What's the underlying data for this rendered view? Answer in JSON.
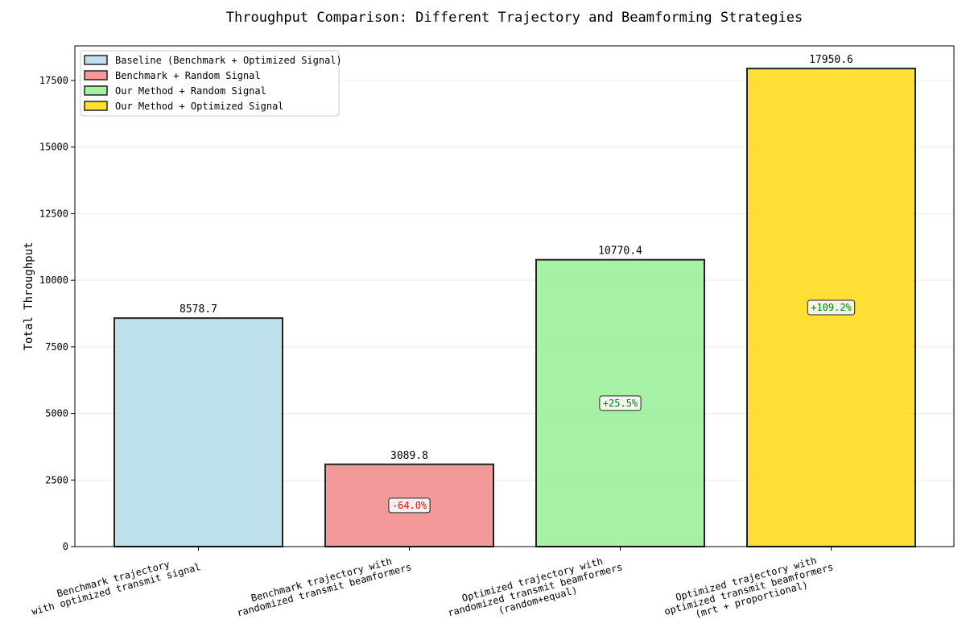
{
  "chart_data": {
    "type": "bar",
    "title": "Throughput Comparison: Different Trajectory and Beamforming Strategies",
    "xlabel": "",
    "ylabel": "Total Throughput",
    "ylim": [
      0,
      18800
    ],
    "yticks": [
      0,
      2500,
      5000,
      7500,
      10000,
      12500,
      15000,
      17500
    ],
    "grid": "y",
    "legend_position": "upper left",
    "categories": [
      [
        "Benchmark trajectory",
        "with optimized transmit signal"
      ],
      [
        "Benchmark trajectory with",
        "randomized transmit beamformers"
      ],
      [
        "Optimized trajectory with",
        "randomized transmit beamformers",
        "(random+equal)"
      ],
      [
        "Optimized trajectory with",
        "optimized transmit beamformers",
        "(mrt + proportional)"
      ]
    ],
    "values": [
      8578.7,
      3089.8,
      10770.4,
      17950.6
    ],
    "value_labels": [
      "8578.7",
      "3089.8",
      "10770.4",
      "17950.6"
    ],
    "legend": [
      "Baseline (Benchmark + Optimized Signal)",
      "Benchmark + Random Signal",
      "Our Method + Random Signal",
      "Our Method + Optimized Signal"
    ],
    "colors": [
      "#add8e6",
      "#f08080",
      "#90ee90",
      "#ffd700"
    ],
    "annotations": [
      null,
      {
        "text": "-64.0%",
        "color": "#ff0000"
      },
      {
        "text": "+25.5%",
        "color": "#008000"
      },
      {
        "text": "+109.2%",
        "color": "#008000"
      }
    ]
  }
}
